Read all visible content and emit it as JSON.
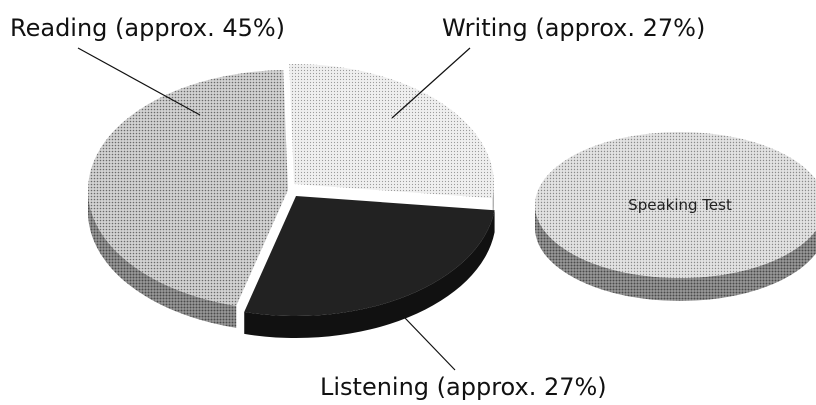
{
  "chart_data": {
    "type": "pie",
    "slices": [
      {
        "label": "Reading (approx. 45%)",
        "value": 45,
        "color": "#bdbdbd"
      },
      {
        "label": "Writing (approx. 27%)",
        "value": 27,
        "color": "#e6e6e6"
      },
      {
        "label": "Listening (approx. 27%)",
        "value": 27,
        "color": "#1c1c1c"
      }
    ],
    "separate_disc": {
      "label": "Speaking Test",
      "color": "#d9d9d9"
    },
    "style": "3d-exploded"
  }
}
